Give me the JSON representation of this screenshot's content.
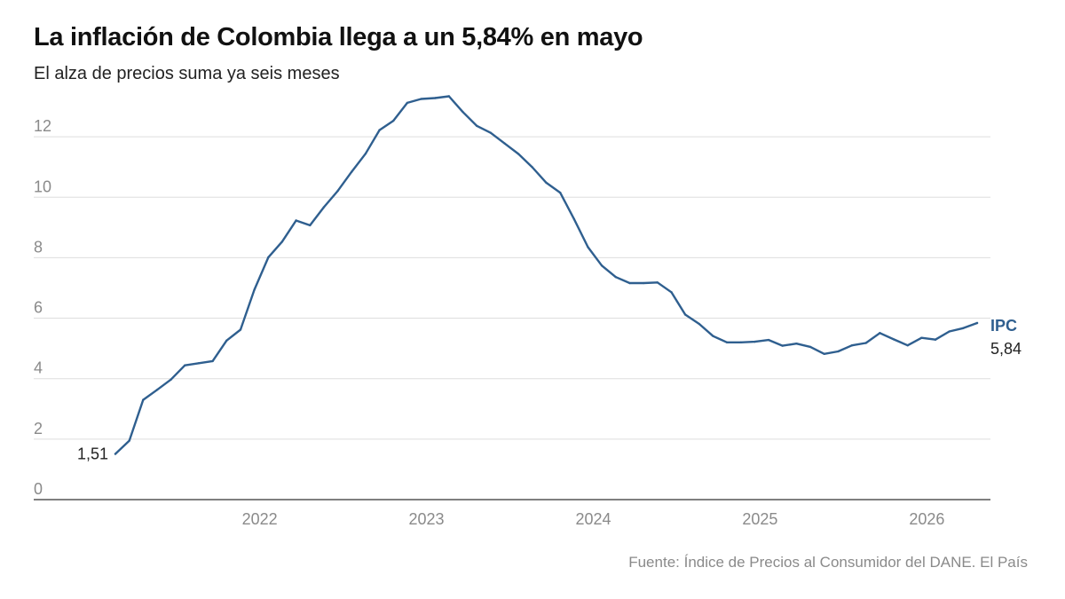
{
  "header": {
    "title": "La inflación de Colombia llega a un 5,84% en mayo",
    "subtitle": "El alza de precios suma ya seis meses"
  },
  "footer": {
    "source": "Fuente: Índice de Precios al Consumidor del DANE. El País"
  },
  "chart_data": {
    "type": "line",
    "title": "La inflación de Colombia llega a un 5,84% en mayo",
    "subtitle": "El alza de precios suma ya seis meses",
    "xlabel": "",
    "ylabel": "",
    "ylim": [
      0,
      13.5
    ],
    "yticks": [
      0,
      2,
      4,
      6,
      8,
      10,
      12
    ],
    "ytick_labels": [
      "0",
      "2",
      "4",
      "6",
      "8",
      "10",
      "12"
    ],
    "xlim": [
      "2021-03",
      "2026-05"
    ],
    "xticks": [
      "2022-01",
      "2023-01",
      "2024-01",
      "2025-01",
      "2026-01"
    ],
    "xtick_labels": [
      "2022",
      "2023",
      "2024",
      "2025",
      "2026"
    ],
    "grid": true,
    "legend": "none",
    "color": "#2f5f8f",
    "x": [
      "2021-03",
      "2021-04",
      "2021-05",
      "2021-06",
      "2021-07",
      "2021-08",
      "2021-09",
      "2021-10",
      "2021-11",
      "2021-12",
      "2022-01",
      "2022-02",
      "2022-03",
      "2022-04",
      "2022-05",
      "2022-06",
      "2022-07",
      "2022-08",
      "2022-09",
      "2022-10",
      "2022-11",
      "2022-12",
      "2023-01",
      "2023-02",
      "2023-03",
      "2023-04",
      "2023-05",
      "2023-06",
      "2023-07",
      "2023-08",
      "2023-09",
      "2023-10",
      "2023-11",
      "2023-12",
      "2024-01",
      "2024-02",
      "2024-03",
      "2024-04",
      "2024-05",
      "2024-06",
      "2024-07",
      "2024-08",
      "2024-09",
      "2024-10",
      "2024-11",
      "2024-12",
      "2025-01",
      "2025-02",
      "2025-03",
      "2025-04",
      "2025-05",
      "2025-06",
      "2025-07",
      "2025-08",
      "2025-09",
      "2025-10",
      "2025-11",
      "2025-12",
      "2026-01",
      "2026-02",
      "2026-03",
      "2026-04",
      "2026-05"
    ],
    "series": [
      {
        "name": "IPC",
        "values": [
          1.51,
          1.95,
          3.3,
          3.63,
          3.97,
          4.44,
          4.51,
          4.58,
          5.26,
          5.62,
          6.94,
          8.01,
          8.53,
          9.23,
          9.07,
          9.67,
          10.21,
          10.84,
          11.44,
          12.22,
          12.53,
          13.12,
          13.25,
          13.28,
          13.34,
          12.82,
          12.36,
          12.13,
          11.78,
          11.43,
          10.99,
          10.48,
          10.15,
          9.28,
          8.35,
          7.74,
          7.36,
          7.16,
          7.16,
          7.18,
          6.86,
          6.12,
          5.81,
          5.41,
          5.2,
          5.2,
          5.22,
          5.28,
          5.09,
          5.16,
          5.05,
          4.82,
          4.9,
          5.1,
          5.18,
          5.51,
          5.3,
          5.1,
          5.35,
          5.29,
          5.56,
          5.67,
          5.84
        ],
        "start_label": "1,51",
        "end_label": "5,84",
        "series_label": "IPC"
      }
    ]
  }
}
